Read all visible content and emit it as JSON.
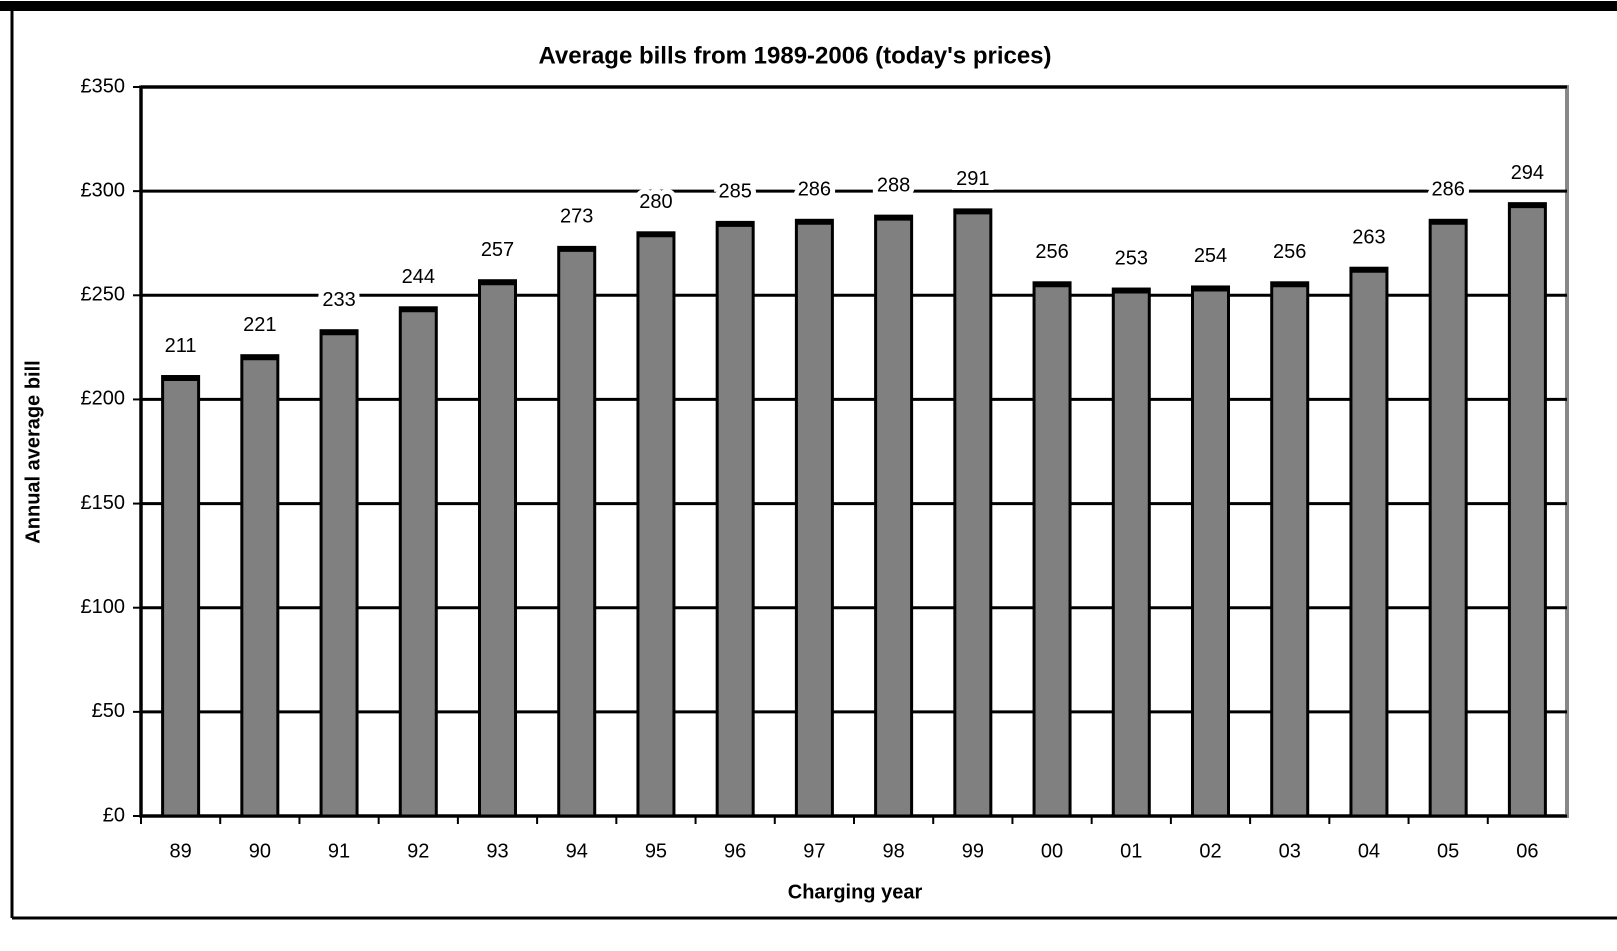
{
  "chart_data": {
    "type": "bar",
    "title": "Average bills from 1989-2006 (today's prices)",
    "xlabel": "Charging year",
    "ylabel": "Annual average bill",
    "categories": [
      "89",
      "90",
      "91",
      "92",
      "93",
      "94",
      "95",
      "96",
      "97",
      "98",
      "99",
      "00",
      "01",
      "02",
      "03",
      "04",
      "05",
      "06"
    ],
    "values": [
      211,
      221,
      233,
      244,
      257,
      273,
      280,
      285,
      286,
      288,
      291,
      256,
      253,
      254,
      256,
      263,
      286,
      294
    ],
    "color": "#808080",
    "ylim": [
      0,
      350
    ],
    "yticks": [
      {
        "value": 0,
        "label": "£0"
      },
      {
        "value": 50,
        "label": "£50"
      },
      {
        "value": 100,
        "label": "£100"
      },
      {
        "value": 150,
        "label": "£150"
      },
      {
        "value": 200,
        "label": "£200"
      },
      {
        "value": 250,
        "label": "£250"
      },
      {
        "value": 300,
        "label": "£300"
      },
      {
        "value": 350,
        "label": "£350"
      }
    ],
    "grid": true
  }
}
